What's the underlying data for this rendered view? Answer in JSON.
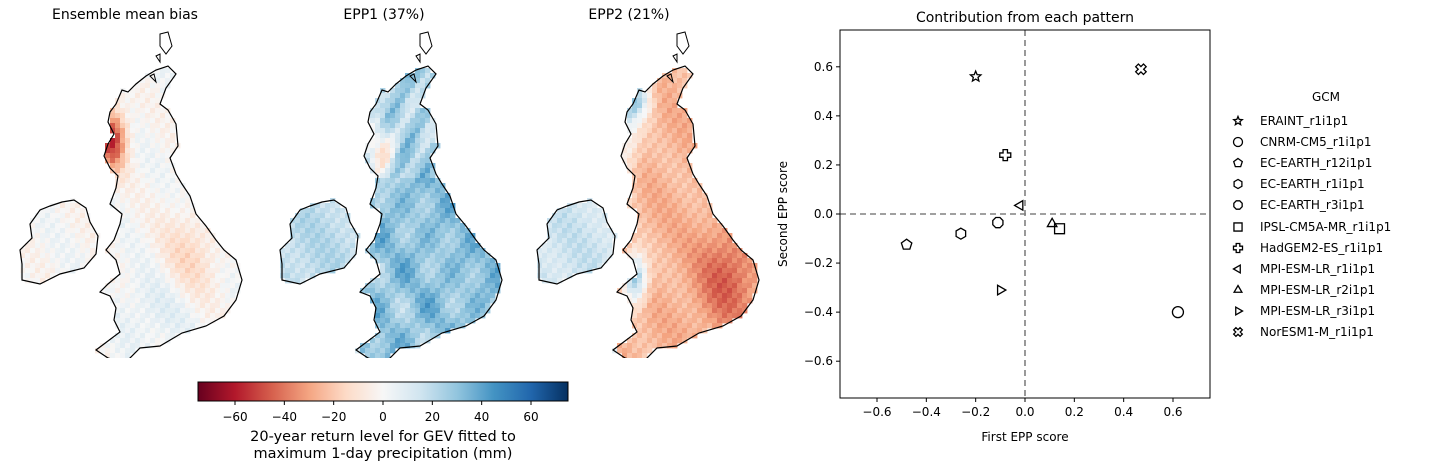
{
  "maps": [
    {
      "title": "Ensemble mean bias",
      "pattern": "bias"
    },
    {
      "title": "EPP1 (37%)",
      "pattern": "epp1"
    },
    {
      "title": "EPP2 (21%)",
      "pattern": "epp2"
    }
  ],
  "colorbar": {
    "ticks": [
      -60,
      -40,
      -20,
      0,
      20,
      40,
      60
    ],
    "range": [
      -75,
      75
    ],
    "label_line1": "20-year return level for GEV fitted to",
    "label_line2": "maximum 1-day precipitation (mm)",
    "colormap": "RdBu"
  },
  "chart_data": {
    "type": "scatter",
    "title": "Contribution from each pattern",
    "xlabel": "First EPP score",
    "ylabel": "Second EPP score",
    "xlim": [
      -0.75,
      0.75
    ],
    "ylim": [
      -0.75,
      0.75
    ],
    "xticks": [
      -0.6,
      -0.4,
      -0.2,
      0.0,
      0.2,
      0.4,
      0.6
    ],
    "yticks": [
      -0.6,
      -0.4,
      -0.2,
      0.0,
      0.2,
      0.4,
      0.6
    ],
    "xtick_labels": [
      "−0.6",
      "−0.4",
      "−0.2",
      "0.0",
      "0.2",
      "0.4",
      "0.6"
    ],
    "ytick_labels": [
      "−0.6",
      "−0.4",
      "−0.2",
      "0.0",
      "0.2",
      "0.4",
      "0.6"
    ],
    "reference_lines": {
      "x": 0,
      "y": 0,
      "style": "dashed",
      "color": "#808080"
    },
    "legend_title": "GCM",
    "legend_position": "right",
    "series": [
      {
        "name": "ERAINT_r1i1p1",
        "marker": "star",
        "x": -0.2,
        "y": 0.56
      },
      {
        "name": "CNRM-CM5_r1i1p1",
        "marker": "circle",
        "x": 0.62,
        "y": -0.4
      },
      {
        "name": "EC-EARTH_r12i1p1",
        "marker": "pentagon",
        "x": -0.48,
        "y": -0.125
      },
      {
        "name": "EC-EARTH_r1i1p1",
        "marker": "hexagon",
        "x": -0.26,
        "y": -0.08
      },
      {
        "name": "EC-EARTH_r3i1p1",
        "marker": "octagon",
        "x": -0.11,
        "y": -0.035
      },
      {
        "name": "IPSL-CM5A-MR_r1i1p1",
        "marker": "square",
        "x": 0.14,
        "y": -0.06
      },
      {
        "name": "HadGEM2-ES_r1i1p1",
        "marker": "plus",
        "x": -0.08,
        "y": 0.24
      },
      {
        "name": "MPI-ESM-LR_r1i1p1",
        "marker": "triangle-left",
        "x": -0.02,
        "y": 0.035
      },
      {
        "name": "MPI-ESM-LR_r2i1p1",
        "marker": "triangle-up",
        "x": 0.11,
        "y": -0.04
      },
      {
        "name": "MPI-ESM-LR_r3i1p1",
        "marker": "triangle-right",
        "x": -0.1,
        "y": -0.31
      },
      {
        "name": "NorESM1-M_r1i1p1",
        "marker": "x-filled",
        "x": 0.47,
        "y": 0.59
      }
    ]
  }
}
